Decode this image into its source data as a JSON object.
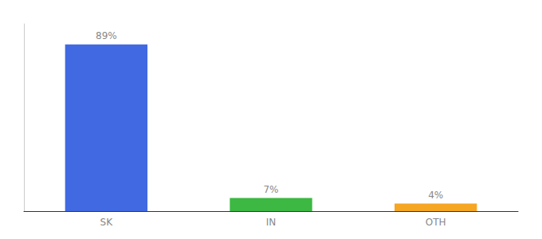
{
  "chart_data": {
    "type": "bar",
    "categories": [
      "SK",
      "IN",
      "OTH"
    ],
    "values": [
      89,
      7,
      4
    ],
    "colors": [
      "#4169e1",
      "#3cb843",
      "#f5a623"
    ],
    "data_labels": true,
    "value_labels": [
      "89%",
      "7%",
      "4%"
    ],
    "ylim": [
      0,
      100
    ],
    "grid": false,
    "tick_labels": "x"
  }
}
